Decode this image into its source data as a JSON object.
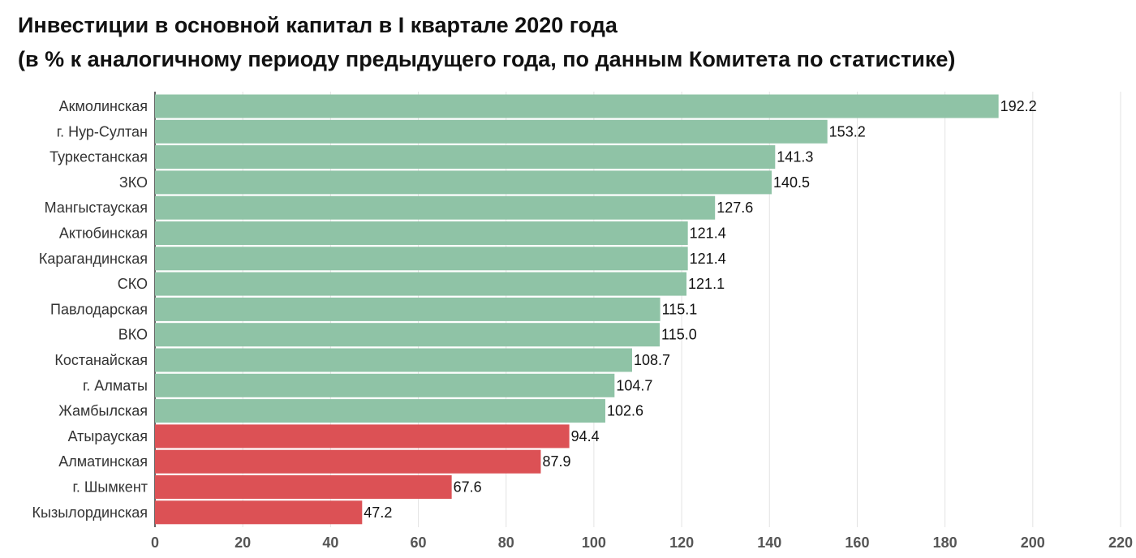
{
  "chart_data": {
    "type": "bar",
    "orientation": "horizontal",
    "title": "Инвестиции в основной капитал в I квартале 2020 года",
    "subtitle": "(в % к аналогичному периоду предыдущего года, по данным Комитета по статистике)",
    "categories": [
      "Акмолинская",
      "г. Нур-Султан",
      "Туркестанская",
      "ЗКО",
      "Мангыстауская",
      "Актюбинская",
      "Карагандинская",
      "СКО",
      "Павлодарская",
      "ВКО",
      "Костанайская",
      "г. Алматы",
      "Жамбылская",
      "Атырауская",
      "Алматинская",
      "г. Шымкент",
      "Кызылординская"
    ],
    "values": [
      192.2,
      153.2,
      141.3,
      140.5,
      127.6,
      121.4,
      121.4,
      121.1,
      115.1,
      115.0,
      108.7,
      104.7,
      102.6,
      94.4,
      87.9,
      67.6,
      47.2
    ],
    "value_labels": [
      "192.2",
      "153.2",
      "141.3",
      "140.5",
      "127.6",
      "121.4",
      "121.4",
      "121.1",
      "115.1",
      "115.0",
      "108.7",
      "104.7",
      "102.6",
      "94.4",
      "87.9",
      "67.6",
      "47.2"
    ],
    "xlim": [
      0,
      220
    ],
    "xticks": [
      "0",
      "20",
      "40",
      "60",
      "80",
      "100",
      "120",
      "140",
      "160",
      "180",
      "200",
      "220"
    ],
    "grid": true,
    "legend": "none",
    "colors": {
      "above_100": "#8fc3a6",
      "below_100": "#dc5155",
      "grid": "#e3e3e3"
    }
  }
}
